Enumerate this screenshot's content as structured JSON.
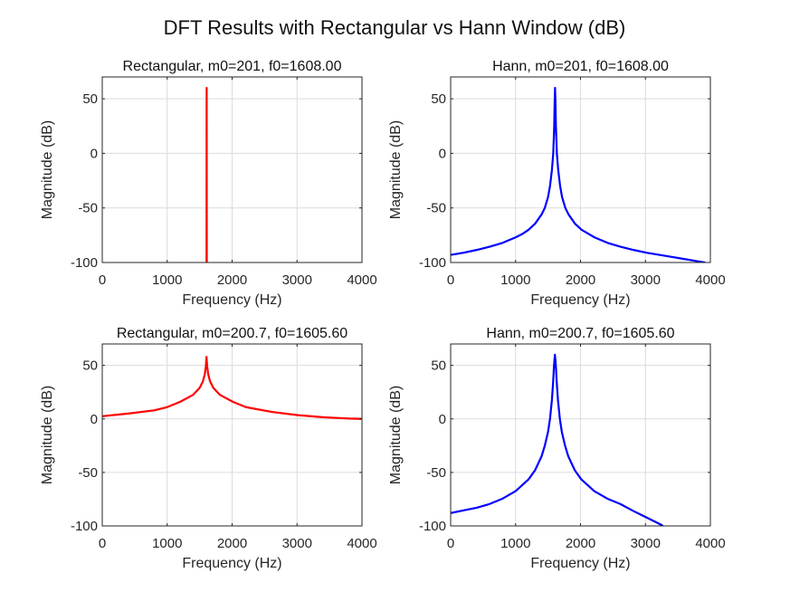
{
  "figure_title": "DFT Results with Rectangular vs Hann Window (dB)",
  "chart_data": [
    {
      "type": "line",
      "title": "Rectangular, m0=201, f0=1608.00",
      "xlabel": "Frequency (Hz)",
      "ylabel": "Magnitude (dB)",
      "xlim": [
        0,
        4000
      ],
      "ylim": [
        -100,
        70
      ],
      "xticks": [
        0,
        1000,
        2000,
        3000,
        4000
      ],
      "yticks": [
        -100,
        -50,
        0,
        50
      ],
      "xtick_labels": [
        "0",
        "1000",
        "2000",
        "3000",
        "4000"
      ],
      "ytick_labels": [
        "-100",
        "-50",
        "0",
        "50"
      ],
      "grid": true,
      "series": [
        {
          "color": "#ff0000",
          "x": [
            1600,
            1606,
            1608,
            1610,
            1616
          ],
          "y": [
            -100,
            -100,
            60,
            -100,
            -100
          ]
        }
      ]
    },
    {
      "type": "line",
      "title": "Hann, m0=201, f0=1608.00",
      "xlabel": "Frequency (Hz)",
      "ylabel": "Magnitude (dB)",
      "xlim": [
        0,
        4000
      ],
      "ylim": [
        -100,
        70
      ],
      "xticks": [
        0,
        1000,
        2000,
        3000,
        4000
      ],
      "yticks": [
        -100,
        -50,
        0,
        50
      ],
      "xtick_labels": [
        "0",
        "1000",
        "2000",
        "3000",
        "4000"
      ],
      "ytick_labels": [
        "-100",
        "-50",
        "0",
        "50"
      ],
      "grid": true,
      "series": [
        {
          "color": "#0000ff",
          "x": [
            0,
            200,
            400,
            600,
            800,
            1000,
            1100,
            1200,
            1300,
            1400,
            1450,
            1500,
            1530,
            1560,
            1580,
            1595,
            1603,
            1608,
            1613,
            1621,
            1636,
            1656,
            1686,
            1716,
            1766,
            1816,
            1916,
            2016,
            2216,
            2416,
            2616,
            2816,
            3016,
            3216,
            3416,
            3616,
            3816,
            3920
          ],
          "y": [
            -93,
            -91,
            -88.5,
            -85.5,
            -82,
            -77,
            -74,
            -70,
            -64.5,
            -56,
            -50,
            -40,
            -30,
            -15,
            0,
            25,
            50,
            60,
            50,
            25,
            0,
            -15,
            -30,
            -40,
            -50,
            -56,
            -64.5,
            -70,
            -77,
            -82,
            -85.5,
            -88.5,
            -91,
            -93,
            -95,
            -97,
            -99,
            -100
          ]
        }
      ]
    },
    {
      "type": "line",
      "title": "Rectangular, m0=200.7, f0=1605.60",
      "xlabel": "Frequency (Hz)",
      "ylabel": "Magnitude (dB)",
      "xlim": [
        0,
        4000
      ],
      "ylim": [
        -100,
        70
      ],
      "xticks": [
        0,
        1000,
        2000,
        3000,
        4000
      ],
      "yticks": [
        -100,
        -50,
        0,
        50
      ],
      "xtick_labels": [
        "0",
        "1000",
        "2000",
        "3000",
        "4000"
      ],
      "ytick_labels": [
        "-100",
        "-50",
        "0",
        "50"
      ],
      "grid": true,
      "series": [
        {
          "color": "#ff0000",
          "x": [
            0,
            400,
            800,
            1000,
            1200,
            1400,
            1500,
            1550,
            1580,
            1595,
            1605.6,
            1616,
            1631,
            1661,
            1711,
            1811,
            2011,
            2211,
            2611,
            3011,
            3411,
            3811,
            4000
          ],
          "y": [
            2.5,
            5,
            8,
            11,
            16,
            22.5,
            29,
            35,
            42,
            49,
            58,
            49,
            42,
            35,
            29,
            22.5,
            16,
            11,
            6.5,
            3.5,
            1.5,
            0.3,
            0
          ]
        }
      ]
    },
    {
      "type": "line",
      "title": "Hann, m0=200.7, f0=1605.60",
      "xlabel": "Frequency (Hz)",
      "ylabel": "Magnitude (dB)",
      "xlim": [
        0,
        4000
      ],
      "ylim": [
        -100,
        70
      ],
      "xticks": [
        0,
        1000,
        2000,
        3000,
        4000
      ],
      "yticks": [
        -100,
        -50,
        0,
        50
      ],
      "xtick_labels": [
        "0",
        "1000",
        "2000",
        "3000",
        "4000"
      ],
      "ytick_labels": [
        "-100",
        "-50",
        "0",
        "50"
      ],
      "grid": true,
      "series": [
        {
          "color": "#0000ff",
          "x": [
            0,
            200,
            400,
            600,
            800,
            1000,
            1200,
            1300,
            1400,
            1450,
            1500,
            1530,
            1560,
            1580,
            1590,
            1600,
            1606,
            1612,
            1622,
            1632,
            1652,
            1682,
            1712,
            1762,
            1812,
            1912,
            2012,
            2212,
            2412,
            2612,
            2812,
            3012,
            3212,
            3270
          ],
          "y": [
            -88,
            -85.5,
            -83,
            -79.5,
            -74.5,
            -67.5,
            -56.5,
            -48,
            -35,
            -25,
            -12,
            0,
            18,
            36,
            48,
            56,
            60,
            56,
            48,
            36,
            18,
            0,
            -12,
            -25,
            -35,
            -48,
            -56.5,
            -67.5,
            -74.5,
            -79.5,
            -86,
            -92,
            -98,
            -100
          ]
        }
      ]
    }
  ]
}
